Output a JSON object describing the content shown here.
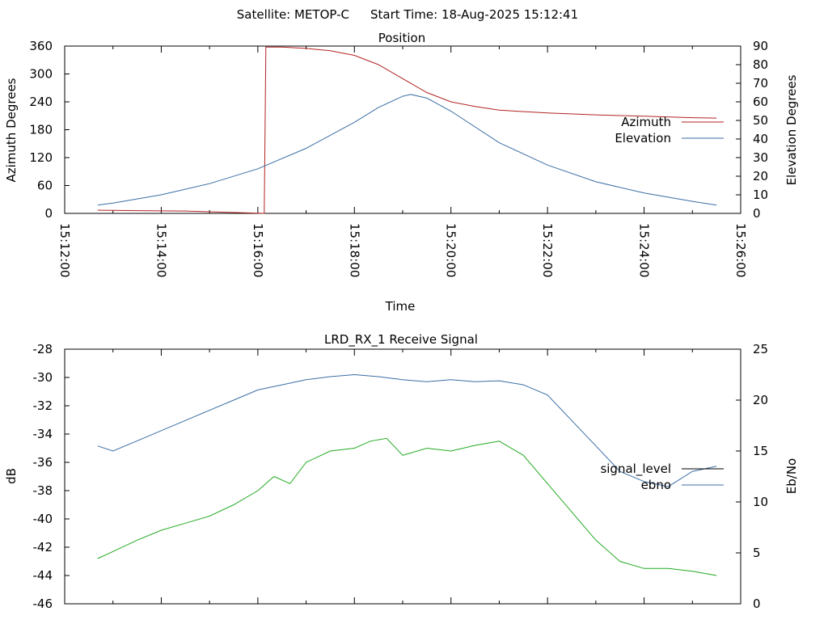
{
  "header": {
    "satellite": "Satellite: METOP-C",
    "start_time": "Start Time: 18-Aug-2025 15:12:41"
  },
  "colors": {
    "azimuth": "#b22222",
    "elevation": "#3a6ea5",
    "signal_level": "#000000",
    "ebno": "#3a6ea5",
    "signal_trace": "#22aa22"
  },
  "chart_data": [
    {
      "type": "line",
      "title": "Position",
      "xlabel": "Time",
      "ylabel": "Azimuth Degrees",
      "y2label": "Elevation Degrees",
      "xlim": [
        "15:12:00",
        "15:26:00"
      ],
      "ylim": [
        0,
        360
      ],
      "y2lim": [
        0,
        90
      ],
      "x_ticks": [
        "15:12:00",
        "15:14:00",
        "15:16:00",
        "15:18:00",
        "15:20:00",
        "15:22:00",
        "15:24:00",
        "15:26:00"
      ],
      "y_ticks": [
        "0",
        "60",
        "120",
        "180",
        "240",
        "300",
        "360"
      ],
      "y2_ticks": [
        "0",
        "10",
        "20",
        "30",
        "40",
        "50",
        "60",
        "70",
        "80",
        "90"
      ],
      "legend_position": "right",
      "series": [
        {
          "name": "Azimuth",
          "axis": "y",
          "points": [
            [
              "15:12:41",
              7
            ],
            [
              "15:13:30",
              6
            ],
            [
              "15:14:30",
              5
            ],
            [
              "15:15:30",
              2
            ],
            [
              "15:16:08",
              0
            ],
            [
              "15:16:10",
              358
            ],
            [
              "15:16:30",
              358
            ],
            [
              "15:17:00",
              355
            ],
            [
              "15:17:30",
              350
            ],
            [
              "15:18:00",
              340
            ],
            [
              "15:18:30",
              320
            ],
            [
              "15:19:00",
              290
            ],
            [
              "15:19:30",
              260
            ],
            [
              "15:20:00",
              240
            ],
            [
              "15:20:30",
              230
            ],
            [
              "15:21:00",
              222
            ],
            [
              "15:22:00",
              216
            ],
            [
              "15:23:00",
              212
            ],
            [
              "15:24:00",
              209
            ],
            [
              "15:25:00",
              206
            ],
            [
              "15:25:30",
              205
            ]
          ]
        },
        {
          "name": "Elevation",
          "axis": "y2",
          "points": [
            [
              "15:12:41",
              4.5
            ],
            [
              "15:13:00",
              5.5
            ],
            [
              "15:14:00",
              10
            ],
            [
              "15:15:00",
              16
            ],
            [
              "15:16:00",
              24
            ],
            [
              "15:17:00",
              35
            ],
            [
              "15:18:00",
              49
            ],
            [
              "15:18:30",
              57
            ],
            [
              "15:19:00",
              63
            ],
            [
              "15:19:10",
              64
            ],
            [
              "15:19:30",
              62
            ],
            [
              "15:20:00",
              55
            ],
            [
              "15:21:00",
              38
            ],
            [
              "15:22:00",
              26
            ],
            [
              "15:23:00",
              17
            ],
            [
              "15:24:00",
              11
            ],
            [
              "15:25:00",
              6.5
            ],
            [
              "15:25:30",
              4.5
            ]
          ]
        }
      ]
    },
    {
      "type": "line",
      "title": "LRD_RX_1 Receive Signal",
      "ylabel": "dB",
      "y2label": "Eb/No",
      "xlim": [
        "15:12:00",
        "15:26:00"
      ],
      "ylim": [
        -46,
        -28
      ],
      "y2lim": [
        0,
        25
      ],
      "y_ticks": [
        "-28",
        "-30",
        "-32",
        "-34",
        "-36",
        "-38",
        "-40",
        "-42",
        "-44",
        "-46"
      ],
      "y2_ticks": [
        "0",
        "5",
        "10",
        "15",
        "20",
        "25"
      ],
      "legend_position": "right",
      "series": [
        {
          "name": "signal_level",
          "axis": "y",
          "points": [
            [
              "15:12:41",
              -42.8
            ],
            [
              "15:13:00",
              -42.3
            ],
            [
              "15:13:30",
              -41.5
            ],
            [
              "15:14:00",
              -40.8
            ],
            [
              "15:14:30",
              -40.3
            ],
            [
              "15:15:00",
              -39.8
            ],
            [
              "15:15:30",
              -39.0
            ],
            [
              "15:16:00",
              -38.0
            ],
            [
              "15:16:20",
              -37.0
            ],
            [
              "15:16:40",
              -37.5
            ],
            [
              "15:17:00",
              -36.0
            ],
            [
              "15:17:30",
              -35.2
            ],
            [
              "15:18:00",
              -35.0
            ],
            [
              "15:18:20",
              -34.5
            ],
            [
              "15:18:40",
              -34.3
            ],
            [
              "15:19:00",
              -35.5
            ],
            [
              "15:19:30",
              -35.0
            ],
            [
              "15:20:00",
              -35.2
            ],
            [
              "15:20:30",
              -34.8
            ],
            [
              "15:21:00",
              -34.5
            ],
            [
              "15:21:30",
              -35.5
            ],
            [
              "15:22:00",
              -37.5
            ],
            [
              "15:22:30",
              -39.5
            ],
            [
              "15:23:00",
              -41.5
            ],
            [
              "15:23:30",
              -43.0
            ],
            [
              "15:24:00",
              -43.5
            ],
            [
              "15:24:30",
              -43.5
            ],
            [
              "15:25:00",
              -43.7
            ],
            [
              "15:25:30",
              -44.0
            ]
          ]
        },
        {
          "name": "ebno",
          "axis": "y2",
          "points": [
            [
              "15:12:41",
              15.5
            ],
            [
              "15:13:00",
              15.0
            ],
            [
              "15:13:30",
              16.0
            ],
            [
              "15:14:00",
              17.0
            ],
            [
              "15:14:30",
              18.0
            ],
            [
              "15:15:00",
              19.0
            ],
            [
              "15:15:30",
              20.0
            ],
            [
              "15:16:00",
              21.0
            ],
            [
              "15:16:30",
              21.5
            ],
            [
              "15:17:00",
              22.0
            ],
            [
              "15:17:30",
              22.3
            ],
            [
              "15:18:00",
              22.5
            ],
            [
              "15:18:30",
              22.3
            ],
            [
              "15:19:00",
              22.0
            ],
            [
              "15:19:30",
              21.8
            ],
            [
              "15:20:00",
              22.0
            ],
            [
              "15:20:30",
              21.8
            ],
            [
              "15:21:00",
              21.9
            ],
            [
              "15:21:30",
              21.5
            ],
            [
              "15:22:00",
              20.5
            ],
            [
              "15:22:30",
              18.0
            ],
            [
              "15:23:00",
              15.5
            ],
            [
              "15:23:30",
              13.0
            ],
            [
              "15:24:00",
              12.0
            ],
            [
              "15:24:30",
              11.5
            ],
            [
              "15:25:00",
              13.0
            ],
            [
              "15:25:30",
              13.5
            ]
          ]
        }
      ]
    }
  ]
}
